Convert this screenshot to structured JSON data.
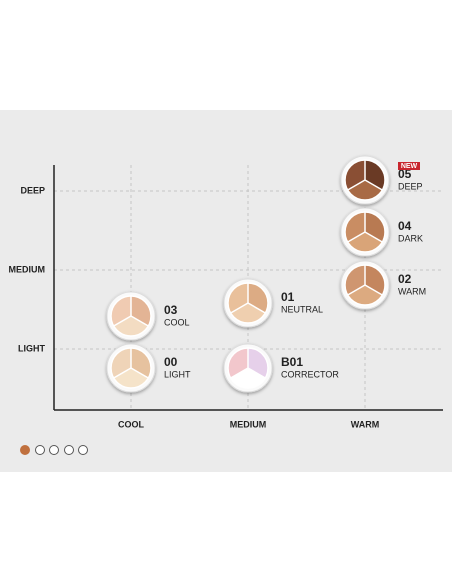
{
  "y_axis": {
    "labels": [
      "DEEP",
      "MEDIUM",
      "LIGHT"
    ]
  },
  "x_axis": {
    "labels": [
      "COOL",
      "MEDIUM",
      "WARM"
    ]
  },
  "products": [
    {
      "code": "03",
      "name": "COOL"
    },
    {
      "code": "00",
      "name": "LIGHT"
    },
    {
      "code": "01",
      "name": "NEUTRAL"
    },
    {
      "code": "B01",
      "name": "CORRECTOR"
    },
    {
      "code": "05",
      "name": "DEEP",
      "badge": "NEW"
    },
    {
      "code": "04",
      "name": "DARK"
    },
    {
      "code": "02",
      "name": "WARM"
    }
  ]
}
